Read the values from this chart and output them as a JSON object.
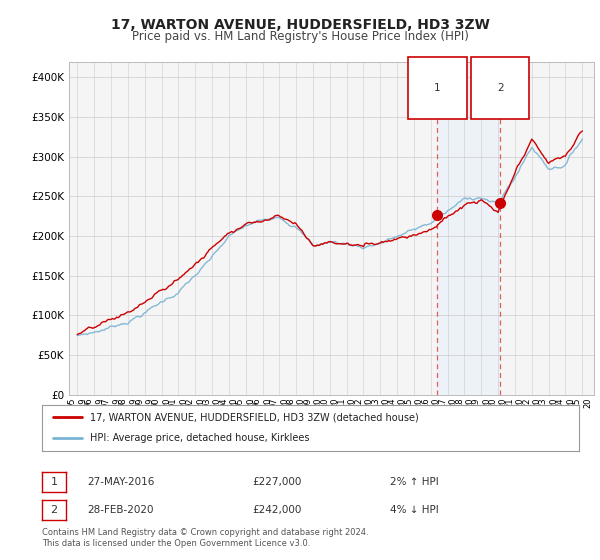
{
  "title": "17, WARTON AVENUE, HUDDERSFIELD, HD3 3ZW",
  "subtitle": "Price paid vs. HM Land Registry's House Price Index (HPI)",
  "title_fontsize": 10,
  "subtitle_fontsize": 8.5,
  "hpi_color": "#7ab3d4",
  "price_color": "#cc0000",
  "shade_color": "#ddeeff",
  "ylim": [
    0,
    420000
  ],
  "yticks": [
    0,
    50000,
    100000,
    150000,
    200000,
    250000,
    300000,
    350000,
    400000
  ],
  "sale1_year": 2016.38,
  "sale1_price": 227000,
  "sale2_year": 2020.12,
  "sale2_price": 242000,
  "legend_label1": "17, WARTON AVENUE, HUDDERSFIELD, HD3 3ZW (detached house)",
  "legend_label2": "HPI: Average price, detached house, Kirklees",
  "note1_date": "27-MAY-2016",
  "note1_price": "£227,000",
  "note1_hpi": "2% ↑ HPI",
  "note2_date": "28-FEB-2020",
  "note2_price": "£242,000",
  "note2_hpi": "4% ↓ HPI",
  "footer": "Contains HM Land Registry data © Crown copyright and database right 2024.\nThis data is licensed under the Open Government Licence v3.0.",
  "background_color": "#ffffff",
  "plot_bg_color": "#f5f5f5"
}
